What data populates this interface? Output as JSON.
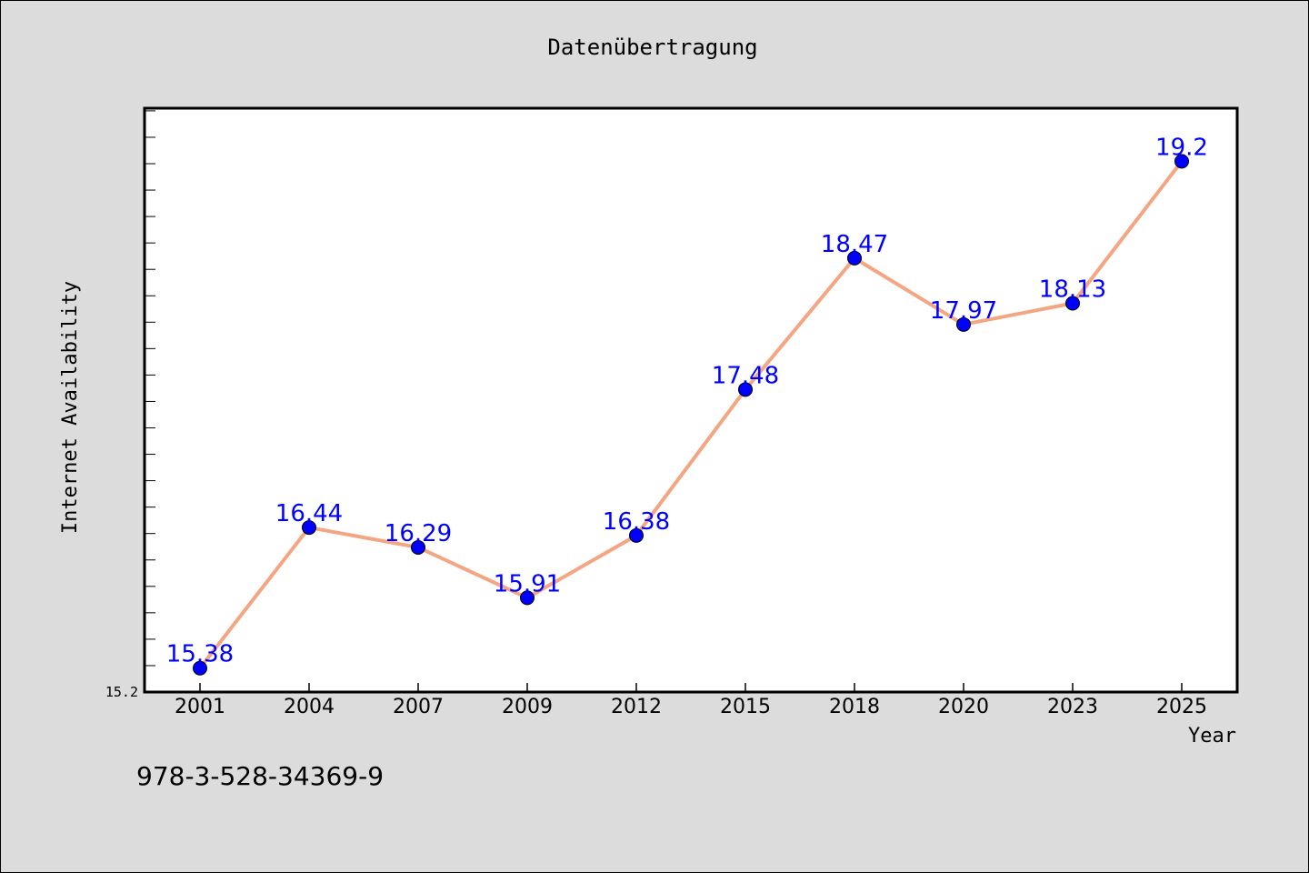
{
  "chart_data": {
    "type": "line",
    "title": "Datenübertragung",
    "xlabel": "Year",
    "ylabel": "Internet Availability",
    "categories": [
      "2001",
      "2004",
      "2007",
      "2009",
      "2012",
      "2015",
      "2018",
      "2020",
      "2023",
      "2025"
    ],
    "series": [
      {
        "values": [
          15.38,
          16.44,
          16.29,
          15.91,
          16.38,
          17.48,
          18.47,
          17.97,
          18.13,
          19.2
        ],
        "labels": [
          "15.38",
          "16.44",
          "16.29",
          "15.91",
          "16.38",
          "17.48",
          "18.47",
          "17.97",
          "18.13",
          "19.2"
        ],
        "line_color": "#f4a582",
        "marker_color": "#0000ff"
      }
    ],
    "ylim": [
      15.2,
      19.6
    ],
    "ytick_label": "15.2",
    "grid": false,
    "legend": "none",
    "label_color": "#0000ff"
  },
  "footer_text": "978-3-528-34369-9",
  "colors": {
    "background": "#dcdcdc",
    "plot_background": "#ffffff",
    "axis": "#000000"
  }
}
